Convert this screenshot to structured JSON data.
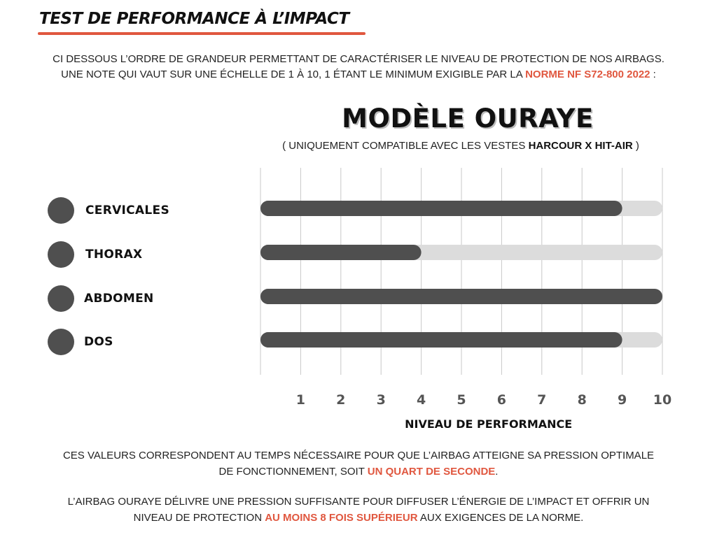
{
  "header": {
    "title": "TEST DE PERFORMANCE À L’IMPACT"
  },
  "intro": {
    "line1": "CI DESSOUS L’ORDRE DE GRANDEUR PERMETTANT DE CARACTÉRISER LE NIVEAU DE PROTECTION DE NOS AIRBAGS.",
    "line2_start": "UNE NOTE QUI VAUT SUR UNE ÉCHELLE DE 1 À 10, 1 ÉTANT LE MINIMUM EXIGIBLE PAR LA ",
    "norm": "NORME NF S72-800 2022",
    "line2_end": " :"
  },
  "colors": {
    "accent": "#e0573f",
    "bar_fill": "#4f4f4f",
    "bar_track": "#dcdcdc",
    "grid": "#c8c8c8",
    "dot": "#4f4f4f"
  },
  "chart_data": {
    "type": "bar",
    "orientation": "horizontal",
    "title": "MODÈLE OURAYE",
    "subtitle_start": "( UNIQUEMENT COMPATIBLE AVEC LES VESTES ",
    "subtitle_bold": "HARCOUR X HIT-AIR",
    "subtitle_end": " )",
    "categories": [
      "CERVICALES",
      "THORAX",
      "ABDOMEN",
      "DOS"
    ],
    "values": [
      9,
      4,
      10,
      9
    ],
    "xlim": [
      0,
      10
    ],
    "ticks": [
      1,
      2,
      3,
      4,
      5,
      6,
      7,
      8,
      9,
      10
    ],
    "xlabel": "NIVEAU DE PERFORMANCE",
    "grid": true
  },
  "footer": {
    "p1_start": "CES VALEURS CORRESPONDENT AU TEMPS NÉCESSAIRE POUR QUE L’AIRBAG ATTEIGNE SA PRESSION OPTIMALE",
    "p1_line2_start": "DE FONCTIONNEMENT, SOIT ",
    "p1_accent": "UN QUART DE SECONDE",
    "p1_end": ".",
    "p2_start": "L’AIRBAG OURAYE DÉLIVRE UNE PRESSION SUFFISANTE POUR DIFFUSER L’ÉNERGIE DE L’IMPACT ET OFFRIR UN",
    "p2_line2_start": "NIVEAU DE PROTECTION ",
    "p2_accent": "AU MOINS 8 FOIS SUPÉRIEUR",
    "p2_end": " AUX EXIGENCES DE LA NORME."
  }
}
